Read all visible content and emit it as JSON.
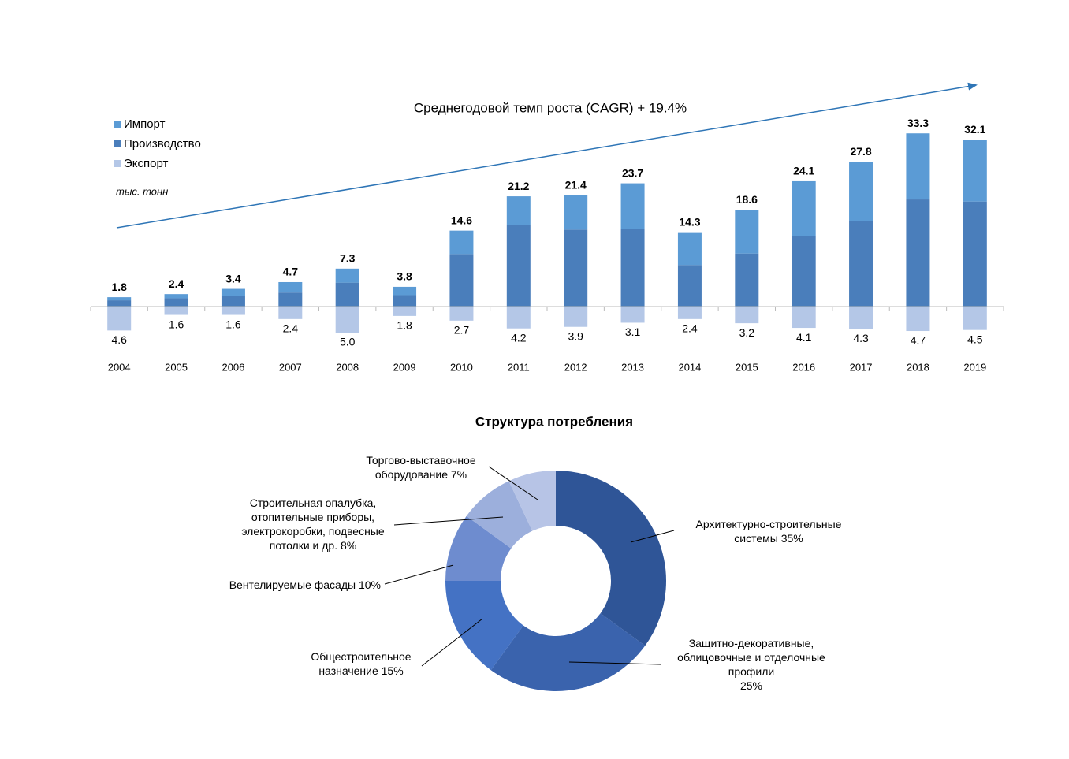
{
  "chart_data": [
    {
      "type": "bar",
      "annotation": "Среднегодовой темп роста (CAGR) + 19.4%",
      "unit_label": "тыс. тонн",
      "categories": [
        "2004",
        "2005",
        "2006",
        "2007",
        "2008",
        "2009",
        "2010",
        "2011",
        "2012",
        "2013",
        "2014",
        "2015",
        "2016",
        "2017",
        "2018",
        "2019"
      ],
      "series": [
        {
          "name": "Импорт",
          "color": "#5b9bd5",
          "values": [
            0.6,
            0.8,
            1.4,
            2.0,
            2.7,
            1.6,
            4.5,
            5.5,
            6.6,
            8.8,
            6.3,
            8.4,
            10.6,
            11.4,
            12.7,
            11.9
          ]
        },
        {
          "name": "Производство",
          "color": "#4a7ebb",
          "values": [
            1.2,
            1.6,
            2.0,
            2.7,
            4.6,
            2.2,
            10.1,
            15.7,
            14.8,
            14.9,
            8.0,
            10.2,
            13.5,
            16.4,
            20.6,
            20.2
          ]
        },
        {
          "name": "Экспорт",
          "color": "#b4c7e7",
          "values": [
            4.6,
            1.6,
            1.6,
            2.4,
            5.0,
            1.8,
            2.7,
            4.2,
            3.9,
            3.1,
            2.4,
            3.2,
            4.1,
            4.3,
            4.7,
            4.5
          ],
          "value_labels": [
            "4.6",
            "1.6",
            "1.6",
            "2.4",
            "5.0",
            "1.8",
            "2.7",
            "4.2",
            "3.9",
            "3.1",
            "2.4",
            "3.2",
            "4.1",
            "4.3",
            "4.7",
            "4.5"
          ]
        }
      ],
      "totals": [
        1.8,
        2.4,
        3.4,
        4.7,
        7.3,
        3.8,
        14.6,
        21.2,
        21.4,
        23.7,
        14.3,
        18.6,
        24.1,
        27.8,
        33.3,
        32.1
      ],
      "legend": "top-left"
    },
    {
      "type": "donut",
      "title": "Структура потребления",
      "labels": [
        [
          "Архитектурно-строительные",
          "системы  "
        ],
        [
          "Защитно-декоративные,",
          "облицовочные и отделочные",
          "профили"
        ],
        [
          "Общестроительное",
          "назначение "
        ],
        [
          "Вентелируемые фасады "
        ],
        [
          "Строительная опалубка,",
          "отопительные приборы,",
          "электрокоробки, подвесные",
          "потолки и др. "
        ],
        [
          "Торгово-выставочное",
          "оборудование "
        ]
      ],
      "values": [
        35,
        25,
        15,
        10,
        8,
        7
      ],
      "value_labels": [
        "35%",
        "25%",
        "15%",
        "10%",
        "8%",
        "7%"
      ],
      "colors": [
        "#2f5597",
        "#3a63ad",
        "#4472c4",
        "#6e8ccf",
        "#9cafdc",
        "#b7c4e6"
      ]
    }
  ]
}
